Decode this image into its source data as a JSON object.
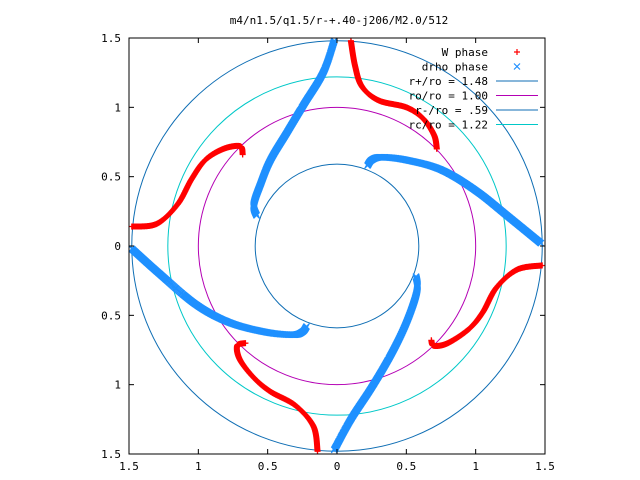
{
  "chart_data": {
    "type": "scatter",
    "title": "m4/n1.5/q1.5/r-+.40-j206/M2.0/512",
    "xlim": [
      -1.5,
      1.5
    ],
    "ylim": [
      -1.5,
      1.5
    ],
    "x_ticks": [
      {
        "value": -1.5,
        "label": "1.5"
      },
      {
        "value": -1.0,
        "label": "1"
      },
      {
        "value": -0.5,
        "label": "0.5"
      },
      {
        "value": 0,
        "label": "0"
      },
      {
        "value": 0.5,
        "label": "0.5"
      },
      {
        "value": 1.0,
        "label": "1"
      },
      {
        "value": 1.5,
        "label": "1.5"
      }
    ],
    "y_ticks": [
      {
        "value": 1.5,
        "label": "1.5"
      },
      {
        "value": 1.0,
        "label": "1"
      },
      {
        "value": 0.5,
        "label": "0.5"
      },
      {
        "value": 0,
        "label": "0"
      },
      {
        "value": -0.5,
        "label": "0.5"
      },
      {
        "value": -1.0,
        "label": "1"
      },
      {
        "value": -1.5,
        "label": "1.5"
      }
    ],
    "grid": false,
    "legend_position": "top-right",
    "series": [
      {
        "name": "W phase",
        "marker": "+",
        "color": "#ff0000",
        "arms": [
          [
            [
              0.1,
              1.48
            ],
            [
              0.13,
              1.3
            ],
            [
              0.18,
              1.15
            ],
            [
              0.3,
              1.05
            ],
            [
              0.5,
              1.0
            ],
            [
              0.62,
              0.92
            ],
            [
              0.7,
              0.8
            ],
            [
              0.72,
              0.7
            ]
          ],
          [
            [
              1.48,
              -0.14
            ],
            [
              1.3,
              -0.17
            ],
            [
              1.15,
              -0.3
            ],
            [
              1.05,
              -0.48
            ],
            [
              0.95,
              -0.6
            ],
            [
              0.8,
              -0.7
            ],
            [
              0.7,
              -0.72
            ],
            [
              0.68,
              -0.68
            ]
          ],
          [
            [
              -0.14,
              -1.48
            ],
            [
              -0.17,
              -1.3
            ],
            [
              -0.3,
              -1.15
            ],
            [
              -0.48,
              -1.05
            ],
            [
              -0.6,
              -0.95
            ],
            [
              -0.7,
              -0.82
            ],
            [
              -0.72,
              -0.72
            ],
            [
              -0.66,
              -0.7
            ]
          ],
          [
            [
              -1.48,
              0.14
            ],
            [
              -1.3,
              0.16
            ],
            [
              -1.15,
              0.3
            ],
            [
              -1.05,
              0.48
            ],
            [
              -0.95,
              0.62
            ],
            [
              -0.82,
              0.7
            ],
            [
              -0.7,
              0.72
            ],
            [
              -0.68,
              0.66
            ]
          ]
        ]
      },
      {
        "name": "drho phase",
        "marker": "x",
        "color": "#1e90ff",
        "arms": [
          [
            [
              0.22,
              0.58
            ],
            [
              0.25,
              0.62
            ],
            [
              0.32,
              0.64
            ],
            [
              0.5,
              0.62
            ],
            [
              0.75,
              0.55
            ],
            [
              1.0,
              0.4
            ],
            [
              1.25,
              0.2
            ],
            [
              1.47,
              0.02
            ]
          ],
          [
            [
              0.57,
              -0.22
            ],
            [
              0.58,
              -0.3
            ],
            [
              0.55,
              -0.42
            ],
            [
              0.48,
              -0.6
            ],
            [
              0.38,
              -0.8
            ],
            [
              0.25,
              -1.02
            ],
            [
              0.1,
              -1.25
            ],
            [
              -0.02,
              -1.47
            ]
          ],
          [
            [
              -0.22,
              -0.58
            ],
            [
              -0.25,
              -0.62
            ],
            [
              -0.32,
              -0.64
            ],
            [
              -0.52,
              -0.62
            ],
            [
              -0.78,
              -0.55
            ],
            [
              -1.02,
              -0.42
            ],
            [
              -1.28,
              -0.2
            ],
            [
              -1.48,
              -0.02
            ]
          ],
          [
            [
              -0.58,
              0.22
            ],
            [
              -0.6,
              0.3
            ],
            [
              -0.55,
              0.45
            ],
            [
              -0.48,
              0.62
            ],
            [
              -0.36,
              0.82
            ],
            [
              -0.24,
              1.02
            ],
            [
              -0.1,
              1.25
            ],
            [
              -0.02,
              1.48
            ]
          ]
        ]
      },
      {
        "name": "r+/ro = 1.48",
        "kind": "circle",
        "radius": 1.48,
        "color": "#0f6eb4"
      },
      {
        "name": "ro/ro = 1.00",
        "kind": "circle",
        "radius": 1.0,
        "color": "#b400b4"
      },
      {
        "name": "r-/ro = .59",
        "kind": "circle",
        "radius": 0.59,
        "color": "#0f6eb4"
      },
      {
        "name": "rc/ro = 1.22",
        "kind": "circle",
        "radius": 1.22,
        "color": "#00c8c8"
      }
    ]
  }
}
